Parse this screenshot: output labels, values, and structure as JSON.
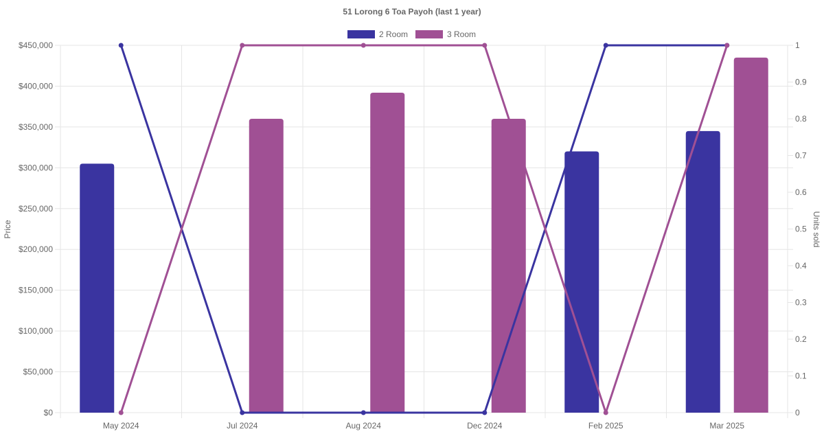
{
  "chart_data": {
    "type": "bar",
    "title": "51 Lorong 6 Toa Payoh (last 1 year)",
    "categories": [
      "May 2024",
      "Jul 2024",
      "Aug 2024",
      "Dec 2024",
      "Feb 2025",
      "Mar 2025"
    ],
    "series": [
      {
        "name": "2 Room",
        "color": "#3a34a0",
        "price_values": [
          305000,
          null,
          null,
          null,
          320000,
          345000
        ],
        "units_sold": [
          1,
          0,
          0,
          0,
          1,
          1
        ]
      },
      {
        "name": "3 Room",
        "color": "#a05094",
        "price_values": [
          null,
          360000,
          392000,
          360000,
          null,
          435000
        ],
        "units_sold": [
          0,
          1,
          1,
          1,
          0,
          1
        ]
      }
    ],
    "y_left": {
      "label": "Price",
      "ylim": [
        0,
        450000
      ],
      "ticks": [
        "$0",
        "$50,000",
        "$100,000",
        "$150,000",
        "$200,000",
        "$250,000",
        "$300,000",
        "$350,000",
        "$400,000",
        "$450,000"
      ]
    },
    "y_right": {
      "label": "Units sold",
      "ylim": [
        0,
        1
      ],
      "ticks": [
        "0",
        "0.1",
        "0.2",
        "0.3",
        "0.4",
        "0.5",
        "0.6",
        "0.7",
        "0.8",
        "0.9",
        "1"
      ]
    },
    "grid": true,
    "legend_position": "top-center"
  }
}
